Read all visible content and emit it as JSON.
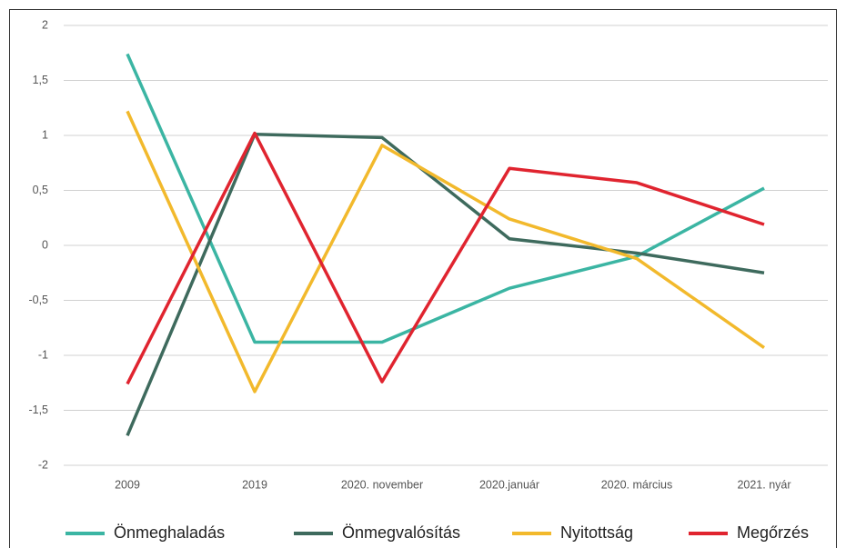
{
  "chart_data": {
    "type": "line",
    "categories": [
      "2009",
      "2019",
      "2020. november",
      "2020.január",
      "2020. március",
      "2021. nyár"
    ],
    "series": [
      {
        "name": "Önmeghaladás",
        "color": "#3bb5a3",
        "values": [
          1.74,
          -0.88,
          -0.88,
          -0.39,
          -0.1,
          0.52
        ]
      },
      {
        "name": "Önmegvalósítás",
        "color": "#3e6a5d",
        "values": [
          -1.73,
          1.01,
          0.98,
          0.06,
          -0.07,
          -0.25
        ]
      },
      {
        "name": "Nyitottság",
        "color": "#f2b92c",
        "values": [
          1.22,
          -1.33,
          0.91,
          0.24,
          -0.12,
          -0.93
        ]
      },
      {
        "name": "Megőrzés",
        "color": "#e0242f",
        "values": [
          -1.26,
          1.02,
          -1.24,
          0.7,
          0.57,
          0.19
        ]
      }
    ],
    "ylim": [
      -2,
      2
    ],
    "yticks": [
      -2,
      {
        "value": -1.5,
        "label": "-1,5"
      },
      -1,
      {
        "value": -0.5,
        "label": "-0,5"
      },
      0,
      {
        "value": 0.5,
        "label": "0,5"
      },
      1,
      {
        "value": 1.5,
        "label": "1,5"
      },
      2
    ],
    "grid": true
  }
}
